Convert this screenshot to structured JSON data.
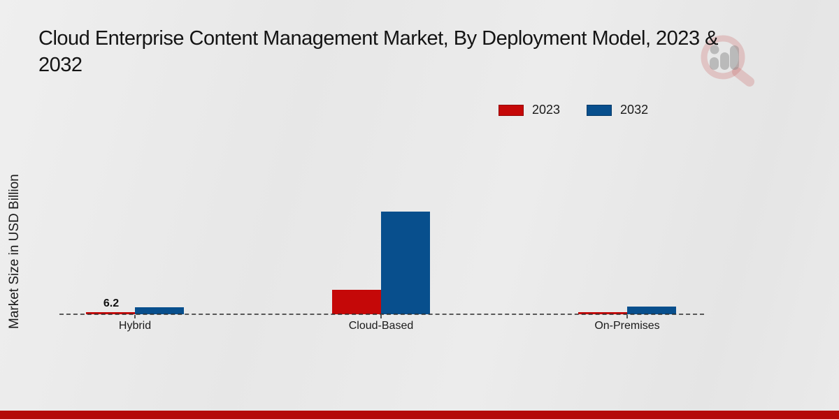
{
  "title_line1": "Cloud Enterprise Content Management Market, By Deployment Model, 2023 &",
  "title_line2": "2032",
  "y_axis_label": "Market Size in USD Billion",
  "annotation": {
    "text": "6.2"
  },
  "colors": {
    "series_2023": "#c50808",
    "series_2032": "#084f8d",
    "footer": "#b40a0a",
    "baseline": "#282828",
    "background": "#e9e9e9"
  },
  "icons": {
    "logo": "magnifier-bar-chart-logo"
  },
  "chart_data": {
    "type": "bar",
    "title": "Cloud Enterprise Content Management Market, By Deployment Model, 2023 & 2032",
    "categories": [
      "Hybrid",
      "Cloud-Based",
      "On-Premises"
    ],
    "series": [
      {
        "name": "2023",
        "color": "#c50808",
        "values": [
          6.2,
          71,
          5.5
        ]
      },
      {
        "name": "2032",
        "color": "#084f8d",
        "values": [
          20.5,
          300,
          22
        ]
      }
    ],
    "xlabel": "",
    "ylabel": "Market Size in USD Billion",
    "ylim": [
      0,
      600
    ],
    "grid": false,
    "legend_position": "top-right",
    "zero_line_style": "dashed",
    "data_labels": [
      {
        "category": "Hybrid",
        "series": "2023",
        "text": "6.2"
      }
    ]
  }
}
